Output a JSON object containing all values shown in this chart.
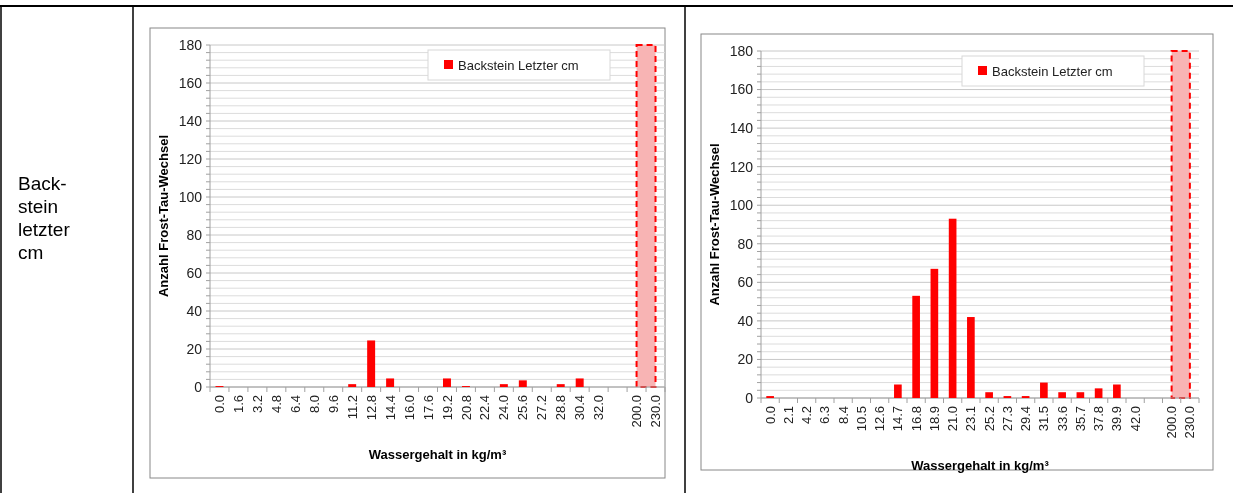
{
  "chart_data": [
    {
      "type": "other",
      "annotations": [
        "Back-stein letzter cm"
      ]
    },
    {
      "type": "bar",
      "xlabel": "Wassergehalt in kg/m³",
      "ylabel": "Anzahl Frost-Tau-Wechsel",
      "categories": [
        "0.0",
        "1.6",
        "3.2",
        "4.8",
        "6.4",
        "8.0",
        "9.6",
        "11.2",
        "12.8",
        "14.4",
        "16.0",
        "17.6",
        "19.2",
        "20.8",
        "22.4",
        "24.0",
        "25.6",
        "27.2",
        "28.8",
        "30.4",
        "32.0",
        null,
        "200.0",
        "230.0"
      ],
      "series": [
        {
          "name": "Backstein Letzter cm",
          "color": "#ff0000",
          "values": [
            0.5,
            0,
            0,
            0,
            0,
            0,
            0,
            1.5,
            24.5,
            4.5,
            0,
            0,
            4.5,
            0.5,
            0,
            1.5,
            3.5,
            0,
            1.5,
            4.5,
            0,
            null,
            null,
            null
          ]
        }
      ],
      "ylim": [
        0,
        180
      ],
      "yticks": [
        0,
        {
          "value": 4,
          "label": null
        },
        {
          "value": 8,
          "label": null
        },
        {
          "value": 12,
          "label": null
        },
        {
          "value": 16,
          "label": null
        },
        20,
        {
          "value": 24,
          "label": null
        },
        {
          "value": 28,
          "label": null
        },
        {
          "value": 32,
          "label": null
        },
        {
          "value": 36,
          "label": null
        },
        40,
        {
          "value": 44,
          "label": null
        },
        {
          "value": 48,
          "label": null
        },
        {
          "value": 52,
          "label": null
        },
        {
          "value": 56,
          "label": null
        },
        60,
        {
          "value": 64,
          "label": null
        },
        {
          "value": 68,
          "label": null
        },
        {
          "value": 72,
          "label": null
        },
        {
          "value": 76,
          "label": null
        },
        80,
        {
          "value": 84,
          "label": null
        },
        {
          "value": 88,
          "label": null
        },
        {
          "value": 92,
          "label": null
        },
        {
          "value": 96,
          "label": null
        },
        100,
        {
          "value": 104,
          "label": null
        },
        {
          "value": 108,
          "label": null
        },
        {
          "value": 112,
          "label": null
        },
        {
          "value": 116,
          "label": null
        },
        120,
        {
          "value": 124,
          "label": null
        },
        {
          "value": 128,
          "label": null
        },
        {
          "value": 132,
          "label": null
        },
        {
          "value": 136,
          "label": null
        },
        140,
        {
          "value": 144,
          "label": null
        },
        {
          "value": 148,
          "label": null
        },
        {
          "value": 152,
          "label": null
        },
        {
          "value": 156,
          "label": null
        },
        160,
        {
          "value": 164,
          "label": null
        },
        {
          "value": 168,
          "label": null
        },
        {
          "value": 172,
          "label": null
        },
        {
          "value": 176,
          "label": null
        },
        180
      ],
      "bands": [
        {
          "axis": "x",
          "from": "200.0",
          "to": "230.0",
          "color": "#f8b4b4"
        }
      ],
      "grid": "y",
      "legend": "top right"
    },
    {
      "type": "bar",
      "xlabel": "Wassergehalt in kg/m³",
      "ylabel": "Anzahl Frost-Tau-Wechsel",
      "categories": [
        "0.0",
        "2.1",
        "4.2",
        "6.3",
        "8.4",
        "10.5",
        "12.6",
        "14.7",
        "16.8",
        "18.9",
        "21.0",
        "23.1",
        "25.2",
        "27.3",
        "29.4",
        "31.5",
        "33.6",
        "35.7",
        "37.8",
        "39.9",
        "42.0",
        null,
        "200.0",
        "230.0"
      ],
      "series": [
        {
          "name": "Backstein Letzter cm",
          "color": "#ff0000",
          "values": [
            1,
            0,
            0,
            0,
            0,
            0,
            0,
            7,
            53,
            67,
            93,
            42,
            3,
            1,
            1,
            8,
            3,
            3,
            5,
            7,
            0,
            null,
            null,
            null
          ]
        }
      ],
      "ylim": [
        0,
        180
      ],
      "yticks": [
        0,
        {
          "value": 4,
          "label": null
        },
        {
          "value": 8,
          "label": null
        },
        {
          "value": 12,
          "label": null
        },
        {
          "value": 16,
          "label": null
        },
        20,
        {
          "value": 24,
          "label": null
        },
        {
          "value": 28,
          "label": null
        },
        {
          "value": 32,
          "label": null
        },
        {
          "value": 36,
          "label": null
        },
        40,
        {
          "value": 44,
          "label": null
        },
        {
          "value": 48,
          "label": null
        },
        {
          "value": 52,
          "label": null
        },
        {
          "value": 56,
          "label": null
        },
        60,
        {
          "value": 64,
          "label": null
        },
        {
          "value": 68,
          "label": null
        },
        {
          "value": 72,
          "label": null
        },
        {
          "value": 76,
          "label": null
        },
        80,
        {
          "value": 84,
          "label": null
        },
        {
          "value": 88,
          "label": null
        },
        {
          "value": 92,
          "label": null
        },
        {
          "value": 96,
          "label": null
        },
        100,
        {
          "value": 104,
          "label": null
        },
        {
          "value": 108,
          "label": null
        },
        {
          "value": 112,
          "label": null
        },
        {
          "value": 116,
          "label": null
        },
        120,
        {
          "value": 124,
          "label": null
        },
        {
          "value": 128,
          "label": null
        },
        {
          "value": 132,
          "label": null
        },
        {
          "value": 136,
          "label": null
        },
        140,
        {
          "value": 144,
          "label": null
        },
        {
          "value": 148,
          "label": null
        },
        {
          "value": 152,
          "label": null
        },
        {
          "value": 156,
          "label": null
        },
        160,
        {
          "value": 164,
          "label": null
        },
        {
          "value": 168,
          "label": null
        },
        {
          "value": 172,
          "label": null
        },
        {
          "value": 176,
          "label": null
        },
        180
      ],
      "bands": [
        {
          "axis": "x",
          "from": "200.0",
          "to": "230.0",
          "color": "#f8b4b4"
        }
      ],
      "grid": "y",
      "legend": "top right"
    }
  ]
}
